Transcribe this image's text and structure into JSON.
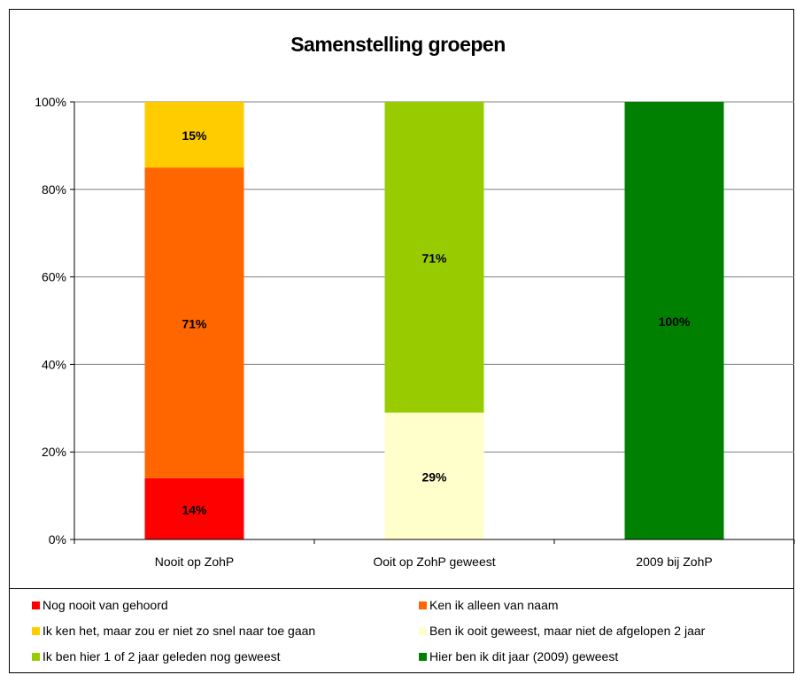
{
  "chart_data": {
    "type": "bar",
    "stacked": true,
    "percent": true,
    "title": "Samenstelling groepen",
    "xlabel": "",
    "ylabel": "",
    "ylim": [
      0,
      100
    ],
    "y_ticks": [
      "0%",
      "20%",
      "40%",
      "60%",
      "80%",
      "100%"
    ],
    "grid": true,
    "legend_position": "bottom",
    "categories": [
      "Nooit op ZohP",
      "Ooit op ZohP geweest",
      "2009 bij ZohP"
    ],
    "series": [
      {
        "name": "Nog nooit van gehoord",
        "color": "#FF0000",
        "values": [
          14,
          0,
          0
        ],
        "labels": [
          "14%",
          "",
          ""
        ]
      },
      {
        "name": "Ken ik alleen van naam",
        "color": "#FF6600",
        "values": [
          71,
          0,
          0
        ],
        "labels": [
          "71%",
          "",
          ""
        ]
      },
      {
        "name": "Ik ken het, maar zou er niet zo snel naar toe gaan",
        "color": "#FFCC00",
        "values": [
          15,
          0,
          0
        ],
        "labels": [
          "15%",
          "",
          ""
        ]
      },
      {
        "name": "Ben ik ooit geweest, maar niet de afgelopen 2 jaar",
        "color": "#FFFFCC",
        "values": [
          0,
          29,
          0
        ],
        "labels": [
          "",
          "29%",
          ""
        ]
      },
      {
        "name": "Ik ben hier 1 of 2 jaar geleden nog geweest",
        "color": "#99CC00",
        "values": [
          0,
          71,
          0
        ],
        "labels": [
          "",
          "71%",
          ""
        ]
      },
      {
        "name": "Hier ben ik dit jaar (2009) geweest",
        "color": "#008000",
        "values": [
          0,
          0,
          100
        ],
        "labels": [
          "",
          "",
          "100%"
        ]
      }
    ]
  }
}
